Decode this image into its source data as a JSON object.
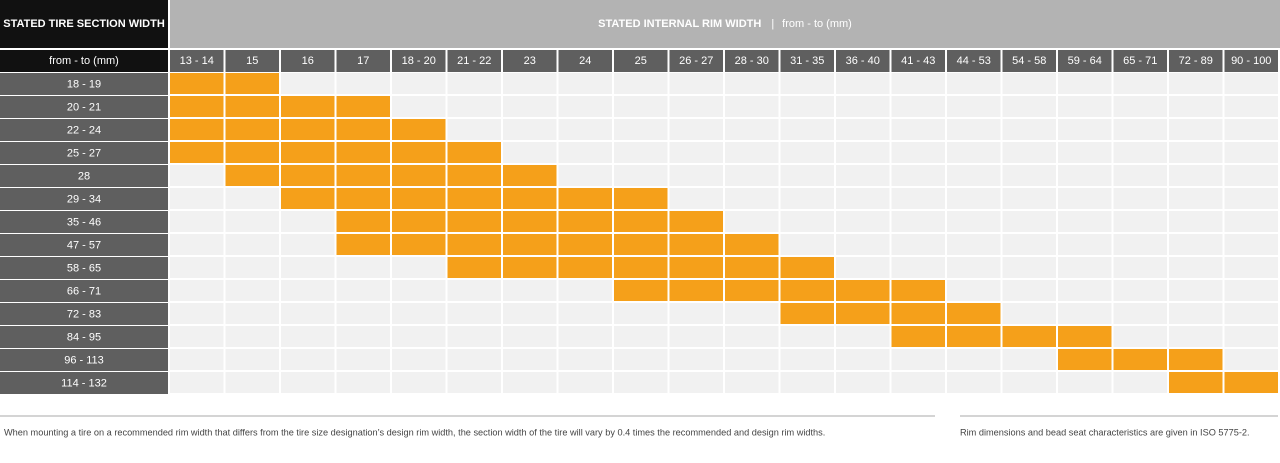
{
  "table": {
    "corner_title": "STATED TIRE SECTION WIDTH",
    "column_title": "STATED INTERNAL RIM WIDTH",
    "column_unit": "from - to (mm)",
    "row_unit": "from - to (mm)",
    "columns": [
      "13 - 14",
      "15",
      "16",
      "17",
      "18 - 20",
      "21 - 22",
      "23",
      "24",
      "25",
      "26 - 27",
      "28 - 30",
      "31 - 35",
      "36 - 40",
      "41 - 43",
      "44 - 53",
      "54 - 58",
      "59 - 64",
      "65 - 71",
      "72 - 89",
      "90 - 100"
    ],
    "rows": [
      {
        "label": "18 - 19",
        "fits": [
          true,
          true,
          false,
          false,
          false,
          false,
          false,
          false,
          false,
          false,
          false,
          false,
          false,
          false,
          false,
          false,
          false,
          false,
          false,
          false
        ]
      },
      {
        "label": "20 - 21",
        "fits": [
          true,
          true,
          true,
          true,
          false,
          false,
          false,
          false,
          false,
          false,
          false,
          false,
          false,
          false,
          false,
          false,
          false,
          false,
          false,
          false
        ]
      },
      {
        "label": "22 - 24",
        "fits": [
          true,
          true,
          true,
          true,
          true,
          false,
          false,
          false,
          false,
          false,
          false,
          false,
          false,
          false,
          false,
          false,
          false,
          false,
          false,
          false
        ]
      },
      {
        "label": "25 - 27",
        "fits": [
          true,
          true,
          true,
          true,
          true,
          true,
          false,
          false,
          false,
          false,
          false,
          false,
          false,
          false,
          false,
          false,
          false,
          false,
          false,
          false
        ]
      },
      {
        "label": "28",
        "fits": [
          false,
          true,
          true,
          true,
          true,
          true,
          true,
          false,
          false,
          false,
          false,
          false,
          false,
          false,
          false,
          false,
          false,
          false,
          false,
          false
        ]
      },
      {
        "label": "29 - 34",
        "fits": [
          false,
          false,
          true,
          true,
          true,
          true,
          true,
          true,
          true,
          false,
          false,
          false,
          false,
          false,
          false,
          false,
          false,
          false,
          false,
          false
        ]
      },
      {
        "label": "35 - 46",
        "fits": [
          false,
          false,
          false,
          true,
          true,
          true,
          true,
          true,
          true,
          true,
          false,
          false,
          false,
          false,
          false,
          false,
          false,
          false,
          false,
          false
        ]
      },
      {
        "label": "47 - 57",
        "fits": [
          false,
          false,
          false,
          true,
          true,
          true,
          true,
          true,
          true,
          true,
          true,
          false,
          false,
          false,
          false,
          false,
          false,
          false,
          false,
          false
        ]
      },
      {
        "label": "58 - 65",
        "fits": [
          false,
          false,
          false,
          false,
          false,
          true,
          true,
          true,
          true,
          true,
          true,
          true,
          false,
          false,
          false,
          false,
          false,
          false,
          false,
          false
        ]
      },
      {
        "label": "66 - 71",
        "fits": [
          false,
          false,
          false,
          false,
          false,
          false,
          false,
          false,
          true,
          true,
          true,
          true,
          true,
          true,
          false,
          false,
          false,
          false,
          false,
          false
        ]
      },
      {
        "label": "72 - 83",
        "fits": [
          false,
          false,
          false,
          false,
          false,
          false,
          false,
          false,
          false,
          false,
          false,
          true,
          true,
          true,
          true,
          false,
          false,
          false,
          false,
          false
        ]
      },
      {
        "label": "84 - 95",
        "fits": [
          false,
          false,
          false,
          false,
          false,
          false,
          false,
          false,
          false,
          false,
          false,
          false,
          false,
          true,
          true,
          true,
          true,
          false,
          false,
          false
        ]
      },
      {
        "label": "96 - 113",
        "fits": [
          false,
          false,
          false,
          false,
          false,
          false,
          false,
          false,
          false,
          false,
          false,
          false,
          false,
          false,
          false,
          false,
          true,
          true,
          true,
          false
        ]
      },
      {
        "label": "114 - 132",
        "fits": [
          false,
          false,
          false,
          false,
          false,
          false,
          false,
          false,
          false,
          false,
          false,
          false,
          false,
          false,
          false,
          false,
          false,
          false,
          true,
          true
        ]
      }
    ]
  },
  "footnotes": [
    "When mounting a tire on a recommended rim width that differs from the tire size designation’s design rim width, the section width of the tire will vary by 0.4 times the recommended and design rim widths.",
    "Rim dimensions and bead seat characteristics are given in ISO 5775-2."
  ]
}
